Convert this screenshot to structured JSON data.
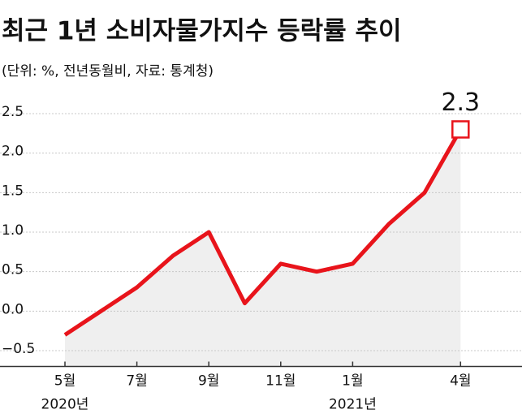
{
  "chart_data": {
    "type": "line",
    "title": "최근 1년 소비자물가지수 등락률 추이",
    "subtitle": "(단위: %, 전년동월비, 자료: 통계청)",
    "categories": [
      "5월",
      null,
      "7월",
      null,
      "9월",
      null,
      "11월",
      null,
      "1월",
      null,
      null,
      "4월"
    ],
    "year_labels": [
      "2020년",
      null,
      null,
      null,
      null,
      null,
      null,
      null,
      "2021년",
      null,
      null,
      null
    ],
    "series": [
      {
        "name": "소비자물가지수 등락률",
        "color": "#e8141b",
        "values": [
          -0.3,
          0.0,
          0.3,
          0.7,
          1.0,
          0.1,
          0.6,
          0.5,
          0.6,
          1.1,
          1.5,
          2.3
        ],
        "value_labels": [
          null,
          null,
          null,
          null,
          null,
          null,
          null,
          null,
          null,
          null,
          null,
          "2.3"
        ]
      }
    ],
    "ylim": [
      -0.7,
      2.7
    ],
    "yticks": [
      2.5,
      {
        "value": 2.0,
        "label": "2.0"
      },
      1.5,
      {
        "value": 1.0,
        "label": "1.0"
      },
      0.5,
      {
        "value": 0.0,
        "label": "0.0"
      },
      {
        "value": -0.5,
        "label": "−0.5"
      }
    ],
    "grid": true,
    "area_color": "#efefef"
  }
}
